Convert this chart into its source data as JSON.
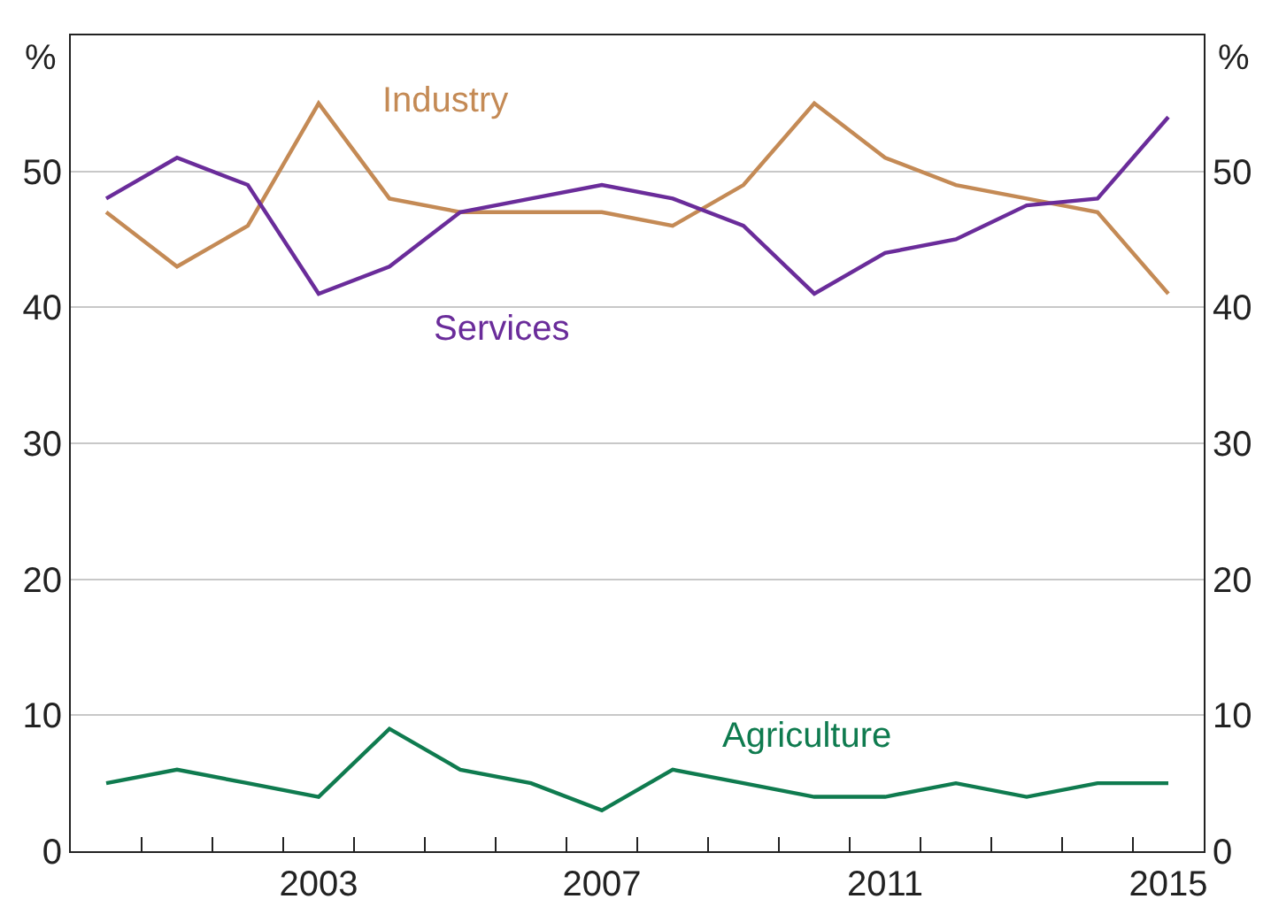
{
  "chart_data": {
    "type": "line",
    "ylabel": "%",
    "y2label": "%",
    "x": [
      2000,
      2001,
      2002,
      2003,
      2004,
      2005,
      2006,
      2007,
      2008,
      2009,
      2010,
      2011,
      2012,
      2013,
      2014,
      2015
    ],
    "series": [
      {
        "name": "Industry",
        "color": "#c48a55",
        "values": [
          47,
          43,
          46,
          55,
          48,
          47,
          47,
          47,
          46,
          49,
          55,
          51,
          49,
          48,
          47,
          41
        ]
      },
      {
        "name": "Services",
        "color": "#6a2c9a",
        "values": [
          48,
          51,
          49,
          41,
          43,
          47,
          48,
          49,
          48,
          46,
          41,
          44,
          45,
          47.5,
          48,
          54
        ]
      },
      {
        "name": "Agriculture",
        "color": "#0f7b4f",
        "values": [
          5,
          6,
          5,
          4,
          9,
          6,
          5,
          3,
          6,
          5,
          4,
          4,
          5,
          4,
          5,
          5
        ]
      }
    ],
    "xlim": [
      1999.5,
      2015.5
    ],
    "xticks": [
      2003,
      2007,
      2011,
      2015,
      {
        "value": 2000.5,
        "label": null
      },
      {
        "value": 2001.5,
        "label": null
      },
      {
        "value": 2002.5,
        "label": null
      },
      {
        "value": 2003.5,
        "label": null
      },
      {
        "value": 2004.5,
        "label": null
      },
      {
        "value": 2005.5,
        "label": null
      },
      {
        "value": 2006.5,
        "label": null
      },
      {
        "value": 2007.5,
        "label": null
      },
      {
        "value": 2008.5,
        "label": null
      },
      {
        "value": 2009.5,
        "label": null
      },
      {
        "value": 2010.5,
        "label": null
      },
      {
        "value": 2011.5,
        "label": null
      },
      {
        "value": 2012.5,
        "label": null
      },
      {
        "value": 2013.5,
        "label": null
      },
      {
        "value": 2014.5,
        "label": null
      }
    ],
    "ylim": [
      0,
      60
    ],
    "yticks": [
      0,
      10,
      20,
      30,
      40,
      50
    ],
    "y2lim": [
      0,
      60
    ],
    "y2ticks": [
      0,
      10,
      20,
      30,
      40,
      50
    ],
    "grid": "y",
    "legend": false,
    "line_style": "solid",
    "marker": "none"
  }
}
